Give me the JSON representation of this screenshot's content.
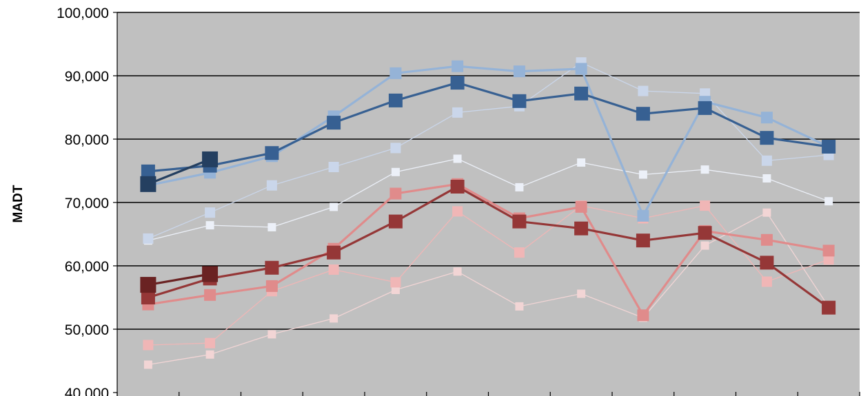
{
  "chart_data": {
    "type": "line",
    "ylabel": "MADT",
    "ylim": [
      40000,
      100000
    ],
    "yticks": [
      "40,000",
      "50,000",
      "60,000",
      "70,000",
      "80,000",
      "90,000",
      "100,000"
    ],
    "ytick_values": [
      40000,
      50000,
      60000,
      70000,
      80000,
      90000,
      100000
    ],
    "x": [
      1,
      2,
      3,
      4,
      5,
      6,
      7,
      8,
      9,
      10,
      11,
      12
    ],
    "xtick_labels": [],
    "grid": true,
    "plot_background": "#c0c0c0",
    "series": [
      {
        "color": "#f2d5d5",
        "width": 1.3,
        "marker": 12,
        "values": [
          44400,
          46000,
          49200,
          51700,
          56200,
          59100,
          53600,
          55600,
          51800,
          63200,
          68400,
          53500
        ]
      },
      {
        "color": "#f0b6b6",
        "width": 1.3,
        "marker": 15,
        "values": [
          47500,
          47800,
          56000,
          59400,
          57400,
          68600,
          62100,
          69500,
          67500,
          69500,
          57500,
          61000
        ]
      },
      {
        "color": "#e08b8b",
        "width": 3.2,
        "marker": 17,
        "values": [
          53900,
          55400,
          56800,
          62700,
          71400,
          72900,
          67500,
          69300,
          52200,
          65500,
          64100,
          62400
        ]
      },
      {
        "color": "#953737",
        "width": 3.2,
        "marker": 20,
        "values": [
          55000,
          58000,
          59700,
          62100,
          67000,
          72500,
          67000,
          65900,
          64000,
          65200,
          60500,
          53400
        ]
      },
      {
        "color": "#6a2222",
        "width": 3.2,
        "marker": 23,
        "values": [
          57000,
          58700,
          null,
          null,
          null,
          null,
          null,
          null,
          null,
          null,
          null,
          null
        ]
      },
      {
        "color": "#ecf0f8",
        "width": 1.3,
        "marker": 12,
        "values": [
          64000,
          66400,
          66100,
          69300,
          74800,
          76900,
          72400,
          76300,
          74400,
          75200,
          73800,
          70200
        ]
      },
      {
        "color": "#cad6ea",
        "width": 1.3,
        "marker": 15,
        "values": [
          64300,
          68400,
          72700,
          75600,
          78600,
          84200,
          85200,
          92100,
          87600,
          87200,
          76600,
          77500
        ]
      },
      {
        "color": "#95b3d7",
        "width": 3.2,
        "marker": 17,
        "values": [
          72700,
          74700,
          77300,
          83600,
          90400,
          91500,
          90700,
          91100,
          67900,
          85900,
          83400,
          78800
        ]
      },
      {
        "color": "#376092",
        "width": 3.2,
        "marker": 20,
        "values": [
          74900,
          75800,
          77800,
          82600,
          86100,
          88900,
          86000,
          87200,
          84000,
          84900,
          80200,
          78800
        ]
      },
      {
        "color": "#243f60",
        "width": 3.2,
        "marker": 23,
        "values": [
          72900,
          76800,
          null,
          null,
          null,
          null,
          null,
          null,
          null,
          null,
          null,
          null
        ]
      }
    ]
  }
}
